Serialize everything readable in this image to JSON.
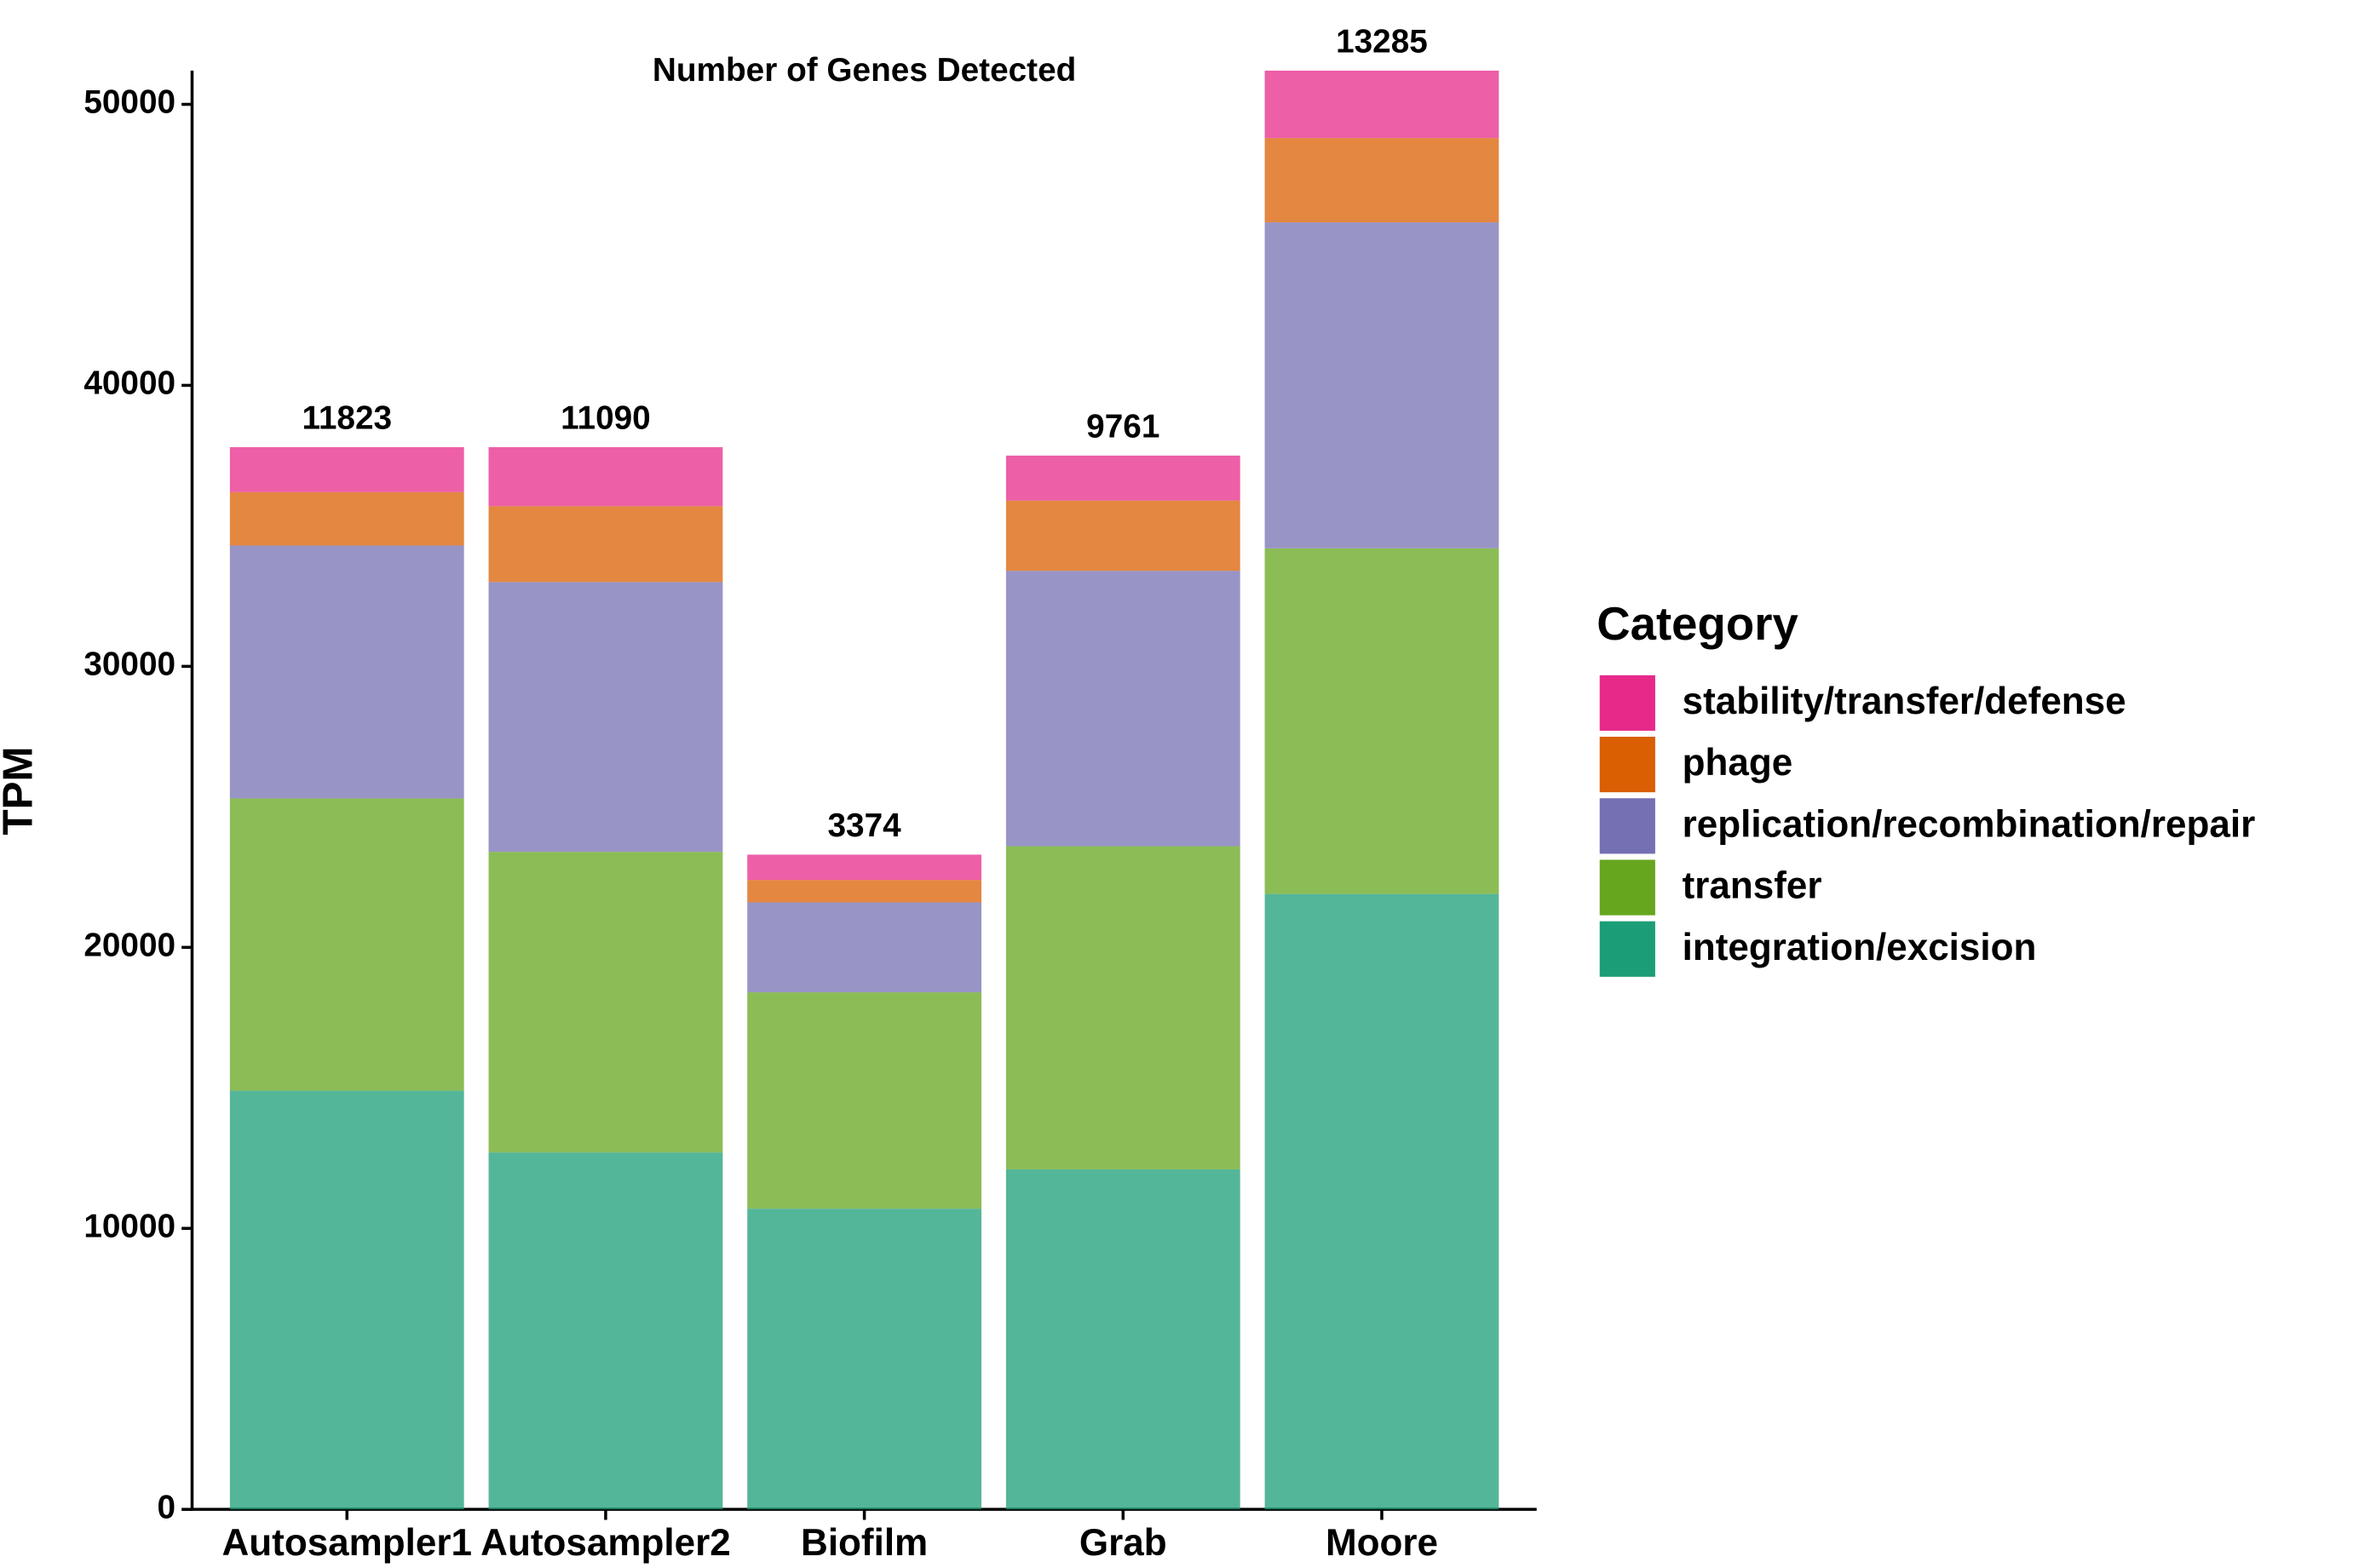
{
  "chart_data": {
    "type": "stacked_bar",
    "title": "Number of Genes Detected",
    "y_label": "TPM",
    "legend_title": "Category",
    "categories": [
      "Autosampler1",
      "Autosampler2",
      "Biofilm",
      "Grab",
      "Moore"
    ],
    "series": [
      {
        "name": "integration/excision",
        "color": "#1b9e77",
        "values": [
          14900,
          12700,
          10700,
          12100,
          21900
        ]
      },
      {
        "name": "transfer",
        "color": "#66a61e",
        "values": [
          10400,
          10700,
          7700,
          11500,
          12300
        ]
      },
      {
        "name": "replication/recombination/repair",
        "color": "#7570b3",
        "values": [
          9000,
          9600,
          3200,
          9800,
          11600
        ]
      },
      {
        "name": "phage",
        "color": "#d95f02",
        "values": [
          1900,
          2700,
          800,
          2500,
          3000
        ]
      },
      {
        "name": "stability/transfer/defense",
        "color": "#e7298a",
        "values": [
          1600,
          2100,
          900,
          1600,
          2400
        ]
      }
    ],
    "bar_labels": [
      11823,
      11090,
      3374,
      9761,
      13285
    ],
    "ylim": [
      0,
      51200
    ],
    "yticks": [
      0,
      10000,
      20000,
      30000,
      40000,
      50000
    ]
  }
}
